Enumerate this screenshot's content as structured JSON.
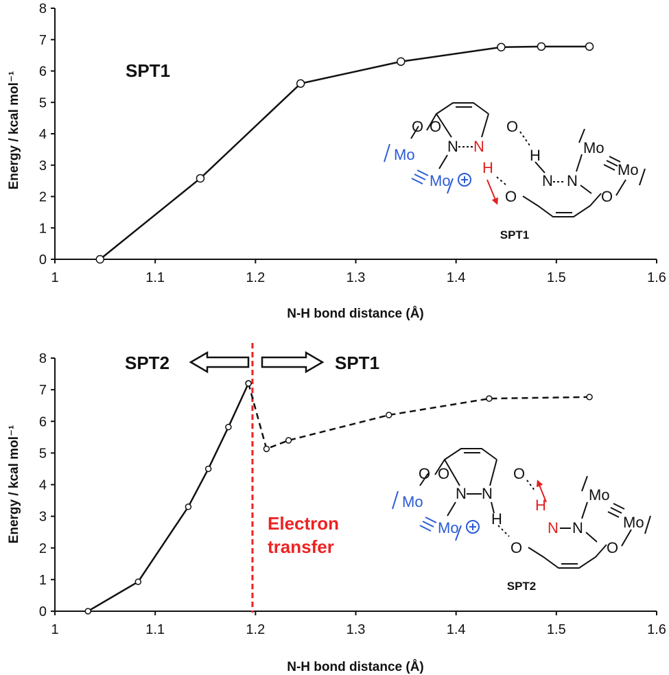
{
  "chart_data": [
    {
      "type": "line",
      "panel_label": "SPT1",
      "xlabel": "N-H bond distance (Å)",
      "ylabel": "Energy / kcal mol⁻¹",
      "xlim": [
        1,
        1.6
      ],
      "ylim": [
        0,
        8
      ],
      "xticks": [
        "1",
        "1.1",
        "1.2",
        "1.3",
        "1.4",
        "1.5",
        "1.6"
      ],
      "yticks": [
        "0",
        "1",
        "2",
        "3",
        "4",
        "5",
        "6",
        "7",
        "8"
      ],
      "series": [
        {
          "style": "solid",
          "x": [
            1.045,
            1.145,
            1.245,
            1.345,
            1.445,
            1.485,
            1.533
          ],
          "y": [
            0.0,
            2.58,
            5.6,
            6.3,
            6.76,
            6.78,
            6.78
          ]
        }
      ],
      "scheme": {
        "name": "SPT1",
        "atoms": {
          "O": "O",
          "N": "N",
          "H": "H",
          "Mo": "Mo",
          "charge": "+"
        }
      }
    },
    {
      "type": "line",
      "xlabel": "N-H bond distance (Å)",
      "ylabel": "Energy / kcal mol⁻¹",
      "xlim": [
        1,
        1.6
      ],
      "ylim": [
        0,
        8
      ],
      "xticks": [
        "1",
        "1.1",
        "1.2",
        "1.3",
        "1.4",
        "1.5",
        "1.6"
      ],
      "yticks": [
        "0",
        "1",
        "2",
        "3",
        "4",
        "5",
        "6",
        "7",
        "8"
      ],
      "series": [
        {
          "style": "solid",
          "x": [
            1.033,
            1.083,
            1.133,
            1.153,
            1.173,
            1.193
          ],
          "y": [
            0.0,
            0.93,
            3.3,
            4.5,
            5.82,
            7.2
          ]
        },
        {
          "style": "dashed",
          "x": [
            1.193,
            1.211,
            1.233,
            1.333,
            1.433,
            1.533
          ],
          "y": [
            7.2,
            5.13,
            5.4,
            6.2,
            6.72,
            6.77
          ]
        }
      ],
      "vline": {
        "x": 1.197,
        "color": "#ee2222"
      },
      "arrow_left_label": "SPT2",
      "arrow_right_label": "SPT1",
      "annotation": [
        "Electron",
        "transfer"
      ],
      "scheme": {
        "name": "SPT2",
        "atoms": {
          "O": "O",
          "N": "N",
          "H": "H",
          "Mo": "Mo",
          "charge": "+"
        }
      }
    }
  ]
}
